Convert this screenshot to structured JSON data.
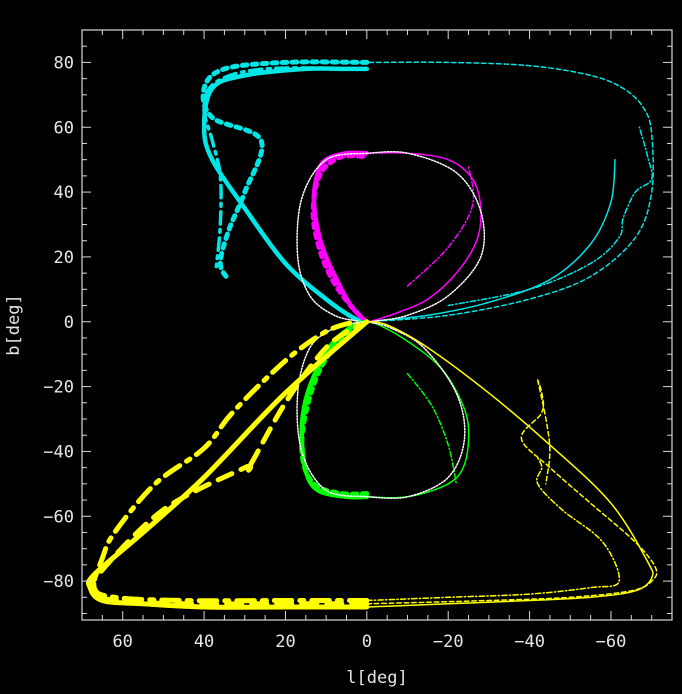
{
  "chart_data": {
    "type": "line",
    "xlabel": "l[deg]",
    "ylabel": "b[deg]",
    "xlim": [
      70,
      -75
    ],
    "ylim": [
      -92,
      90
    ],
    "x_reversed": true,
    "xticks": [
      60,
      40,
      20,
      0,
      -20,
      -40,
      -60
    ],
    "xtick_labels": [
      "60",
      "40",
      "20",
      "0",
      "−20",
      "−40",
      "−60"
    ],
    "yticks": [
      80,
      60,
      40,
      20,
      0,
      -20,
      -40,
      -60,
      -80
    ],
    "ytick_labels": [
      "80",
      "60",
      "40",
      "20",
      "0",
      "−20",
      "−40",
      "−60",
      "−80"
    ],
    "grid": false,
    "background": "#000000",
    "series": [
      {
        "color": "#00e5e5",
        "dash": "solid",
        "width": 4.5,
        "x": [
          0,
          5,
          15,
          30,
          38,
          40,
          38,
          30,
          20,
          10,
          3,
          0
        ],
        "y": [
          78,
          78,
          78,
          76,
          72,
          60,
          50,
          35,
          18,
          7,
          1,
          0
        ]
      },
      {
        "color": "#00e5e5",
        "dash": "dotted",
        "width": 5,
        "x": [
          0,
          20,
          35,
          40,
          38,
          26,
          30,
          34,
          36,
          34
        ],
        "y": [
          80,
          80,
          78,
          72,
          63,
          56,
          40,
          28,
          18,
          13
        ]
      },
      {
        "color": "#00e5e5",
        "dash": "dashdot",
        "width": 3.5,
        "x": [
          0,
          25,
          37,
          40,
          38,
          36,
          36,
          37
        ],
        "y": [
          78,
          78,
          74,
          66,
          56,
          45,
          30,
          17
        ]
      },
      {
        "color": "#00e5e5",
        "dash": "solid",
        "width": 1.5,
        "x": [
          0,
          -15,
          -30,
          -45,
          -55,
          -60,
          -61
        ],
        "y": [
          0,
          2,
          6,
          13,
          24,
          37,
          50
        ]
      },
      {
        "color": "#00e5e5",
        "dash": "dashed",
        "width": 1.5,
        "x": [
          0,
          20,
          0,
          -20,
          -40,
          -55,
          -63,
          -68,
          -70,
          -70,
          -66,
          -55,
          -40,
          -20,
          0
        ],
        "y": [
          80,
          80,
          80,
          80,
          79,
          76,
          72,
          66,
          58,
          40,
          26,
          14,
          7,
          2,
          0
        ]
      },
      {
        "color": "#00e5e5",
        "dash": "dashdot",
        "width": 1.5,
        "x": [
          -20,
          -40,
          -55,
          -62,
          -63,
          -66,
          -70,
          -69,
          -67
        ],
        "y": [
          5,
          10,
          18,
          26,
          32,
          40,
          44,
          51,
          60
        ]
      },
      {
        "color": "#ff00ff",
        "dash": "solid",
        "width": 4.5,
        "x": [
          0,
          5,
          10,
          12,
          13,
          12,
          10,
          7,
          4,
          1,
          0
        ],
        "y": [
          52,
          52,
          50,
          46,
          38,
          28,
          20,
          12,
          5,
          1,
          0
        ]
      },
      {
        "color": "#ff00ff",
        "dash": "dotted",
        "width": 5,
        "x": [
          1,
          6,
          10,
          12,
          13,
          13,
          11,
          8,
          4,
          1
        ],
        "y": [
          51,
          51,
          48,
          44,
          38,
          30,
          20,
          12,
          5,
          1
        ]
      },
      {
        "color": "#ff00ff",
        "dash": "solid",
        "width": 1.5,
        "x": [
          0,
          -10,
          -20,
          -26,
          -28,
          -27,
          -22,
          -15,
          -8,
          -2,
          0
        ],
        "y": [
          52,
          52,
          50,
          44,
          35,
          25,
          15,
          7,
          3,
          0.5,
          0
        ]
      },
      {
        "color": "#ff00ff",
        "dash": "dashdot",
        "width": 1.5,
        "x": [
          -10,
          -20,
          -26,
          -25
        ],
        "y": [
          11,
          23,
          36,
          48
        ]
      },
      {
        "color": "#ffffff",
        "dash": "dotted",
        "width": 1.5,
        "x": [
          0,
          10,
          16,
          17,
          14,
          8,
          2,
          0
        ],
        "y": [
          52,
          50,
          38,
          20,
          8,
          2,
          0.2,
          0
        ]
      },
      {
        "color": "#ffffff",
        "dash": "dotted",
        "width": 1.5,
        "x": [
          0,
          -10,
          -22,
          -28,
          -28,
          -20,
          -10,
          -2,
          0
        ],
        "y": [
          52,
          52,
          46,
          34,
          20,
          8,
          2,
          0.2,
          0
        ]
      },
      {
        "color": "#00ff00",
        "dash": "solid",
        "width": 4.5,
        "x": [
          0,
          5,
          12,
          15,
          16,
          15,
          12,
          8,
          3,
          0
        ],
        "y": [
          -54,
          -54,
          -52,
          -46,
          -34,
          -24,
          -14,
          -6,
          -1,
          0
        ]
      },
      {
        "color": "#00ff00",
        "dash": "dotted",
        "width": 5,
        "x": [
          0,
          6,
          12,
          15,
          16,
          15,
          12,
          7,
          2
        ],
        "y": [
          -53,
          -53,
          -51,
          -46,
          -38,
          -28,
          -16,
          -6,
          -1
        ]
      },
      {
        "color": "#00ff00",
        "dash": "solid",
        "width": 1.5,
        "x": [
          0,
          -10,
          -20,
          -24,
          -25,
          -23,
          -18,
          -10,
          -3,
          0
        ],
        "y": [
          -54,
          -54,
          -50,
          -44,
          -33,
          -24,
          -14,
          -6,
          -1,
          0
        ]
      },
      {
        "color": "#00ff00",
        "dash": "dashdot",
        "width": 1.5,
        "x": [
          -10,
          -16,
          -20,
          -22
        ],
        "y": [
          -16,
          -26,
          -38,
          -50
        ]
      },
      {
        "color": "#ffffff",
        "dash": "dotted",
        "width": 1.5,
        "x": [
          0,
          10,
          16,
          17,
          14,
          8,
          2,
          0
        ],
        "y": [
          -54,
          -52,
          -40,
          -22,
          -8,
          -2,
          -0.2,
          0
        ]
      },
      {
        "color": "#ffffff",
        "dash": "dotted",
        "width": 1.5,
        "x": [
          0,
          -10,
          -20,
          -24,
          -22,
          -14,
          -6,
          -1,
          0
        ],
        "y": [
          -54,
          -54,
          -48,
          -36,
          -22,
          -8,
          -2,
          -0.2,
          0
        ]
      },
      {
        "color": "#ffff00",
        "dash": "solid",
        "width": 5,
        "x": [
          0,
          20,
          40,
          55,
          65,
          68,
          67,
          55,
          40,
          20,
          0
        ],
        "y": [
          -88,
          -88,
          -88,
          -87,
          -86,
          -82,
          -78,
          -65,
          -48,
          -22,
          0
        ]
      },
      {
        "color": "#ffff00",
        "dash": "dashed",
        "width": 5,
        "x": [
          0,
          25,
          45,
          62,
          67,
          66,
          50,
          30,
          29,
          20,
          10,
          2
        ],
        "y": [
          -87,
          -87,
          -87,
          -86,
          -83,
          -78,
          -58,
          -45,
          -45,
          -25,
          -8,
          -1
        ]
      },
      {
        "color": "#ffff00",
        "dash": "dashdot",
        "width": 5,
        "x": [
          0,
          20,
          45,
          62,
          67,
          65,
          62,
          52,
          40,
          33,
          20,
          10,
          3
        ],
        "y": [
          -86,
          -86,
          -86,
          -85,
          -82,
          -73,
          -65,
          -50,
          -39,
          -28,
          -12,
          -3,
          0
        ]
      },
      {
        "color": "#ffff00",
        "dash": "solid",
        "width": 1.5,
        "x": [
          0,
          -20,
          -40,
          -55,
          -66,
          -70,
          -69,
          -60,
          -45,
          -30,
          -15,
          -5,
          0
        ],
        "y": [
          -88,
          -87,
          -86,
          -85,
          -83,
          -79,
          -74,
          -56,
          -38,
          -22,
          -8,
          -1,
          0
        ]
      },
      {
        "color": "#ffff00",
        "dash": "dashed",
        "width": 1.5,
        "x": [
          0,
          -30,
          -50,
          -65,
          -70,
          -71,
          -66,
          -55,
          -45,
          -38,
          -43,
          -43,
          -42
        ],
        "y": [
          -87,
          -86,
          -85,
          -83,
          -80,
          -76,
          -68,
          -56,
          -45,
          -36,
          -28,
          -22,
          -18
        ]
      },
      {
        "color": "#ffff00",
        "dash": "dashdot",
        "width": 1.5,
        "x": [
          0,
          -20,
          -40,
          -55,
          -62,
          -58,
          -48,
          -42,
          -43,
          -42
        ],
        "y": [
          -86,
          -85,
          -84,
          -82,
          -80,
          -68,
          -58,
          -50,
          -45,
          -42
        ]
      },
      {
        "color": "#ffff00",
        "dash": "dashed",
        "width": 1.5,
        "x": [
          -42,
          -44,
          -45,
          -44
        ],
        "y": [
          -18,
          -30,
          -40,
          -50
        ]
      }
    ]
  }
}
